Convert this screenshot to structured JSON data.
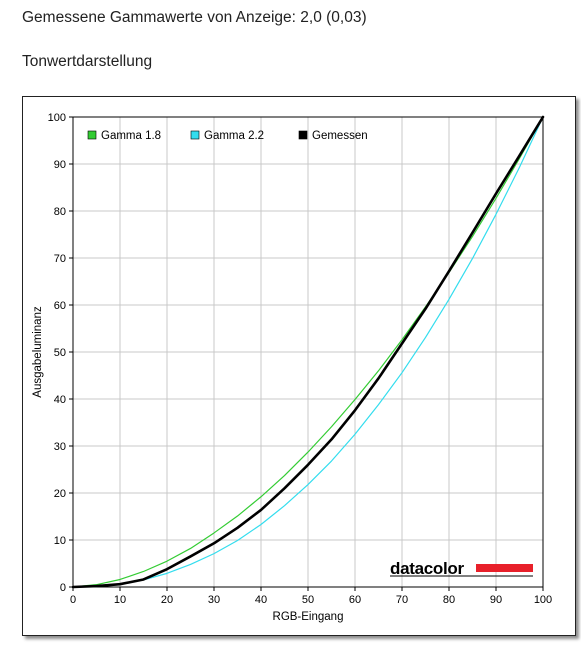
{
  "header": {
    "title": "Gemessene Gammawerte von Anzeige: 2,0 (0,03)",
    "section": "Tonwertdarstellung"
  },
  "logo": {
    "text": "datacolor",
    "bar_color": "#e8202a"
  },
  "chart_data": {
    "type": "line",
    "title": "",
    "xlabel": "RGB-Eingang",
    "ylabel": "Ausgabeluminanz",
    "xlim": [
      0,
      100
    ],
    "ylim": [
      0,
      100
    ],
    "xticks": [
      0,
      10,
      20,
      30,
      40,
      50,
      60,
      70,
      80,
      90,
      100
    ],
    "yticks": [
      0,
      10,
      20,
      30,
      40,
      50,
      60,
      70,
      80,
      90,
      100
    ],
    "grid": true,
    "legend_position": "top-left",
    "series": [
      {
        "name": "Gamma 1.8",
        "color": "#33cc33",
        "x": [
          0,
          5,
          10,
          15,
          20,
          25,
          30,
          35,
          40,
          45,
          50,
          55,
          60,
          65,
          70,
          75,
          80,
          85,
          90,
          95,
          100
        ],
        "y": [
          0,
          0.5,
          1.6,
          3.3,
          5.5,
          8.2,
          11.5,
          15.1,
          19.2,
          23.7,
          28.7,
          34.1,
          39.9,
          46.0,
          52.6,
          59.6,
          66.9,
          74.6,
          82.7,
          91.2,
          100
        ]
      },
      {
        "name": "Gamma 2.2",
        "color": "#33ddee",
        "x": [
          0,
          5,
          10,
          15,
          20,
          25,
          30,
          35,
          40,
          45,
          50,
          55,
          60,
          65,
          70,
          75,
          80,
          85,
          90,
          95,
          100
        ],
        "y": [
          0,
          0.1,
          0.6,
          1.5,
          2.9,
          4.8,
          7.1,
          9.9,
          13.3,
          17.3,
          21.8,
          26.8,
          32.5,
          38.8,
          45.6,
          53.1,
          61.2,
          69.9,
          79.3,
          89.3,
          100
        ]
      },
      {
        "name": "Gemessen",
        "color": "#000000",
        "x": [
          0,
          5,
          10,
          15,
          20,
          25,
          30,
          35,
          40,
          45,
          50,
          55,
          60,
          65,
          70,
          75,
          80,
          85,
          90,
          95,
          100
        ],
        "y": [
          0,
          0.2,
          0.6,
          1.6,
          3.8,
          6.5,
          9.3,
          12.6,
          16.4,
          21.0,
          26.0,
          31.4,
          37.6,
          44.4,
          51.8,
          59.2,
          67.2,
          75.4,
          83.7,
          91.8,
          100
        ]
      }
    ]
  }
}
